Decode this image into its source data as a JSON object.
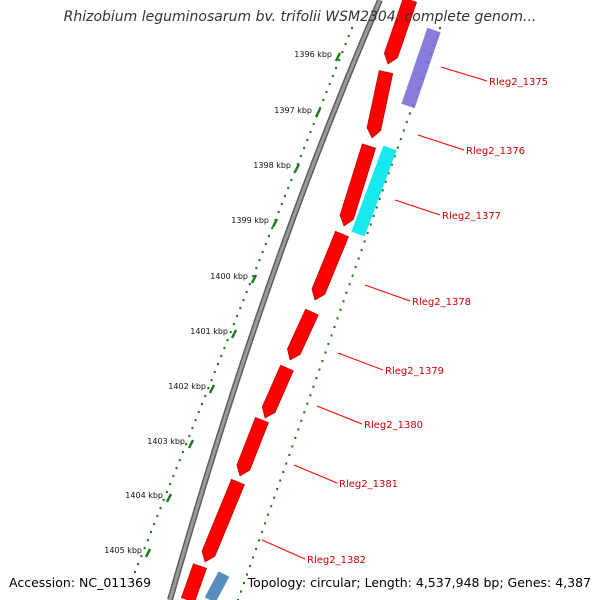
{
  "title": "Rhizobium leguminosarum bv. trifolii WSM2304, complete genom...",
  "footer": {
    "accession": "Accession: NC_011369",
    "summary": "Topology: circular; Length: 4,537,948 bp; Genes: 4,387"
  },
  "colors": {
    "backbone": "#8c8c8c",
    "forward_gene": "#ff0000",
    "gene_label": "#cc0000",
    "tick_mark": "#1f7a1f",
    "highlight_purple": "#7b6fd6",
    "highlight_cyan": "#00e5ee",
    "highlight_steelblue": "#4682b4"
  },
  "ticks": [
    "1396 kbp",
    "1397 kbp",
    "1398 kbp",
    "1399 kbp",
    "1400 kbp",
    "1401 kbp",
    "1402 kbp",
    "1403 kbp",
    "1404 kbp",
    "1405 kbp"
  ],
  "genes": [
    "Rleg2_1375",
    "Rleg2_1376",
    "Rleg2_1377",
    "Rleg2_1378",
    "Rleg2_1379",
    "Rleg2_1380",
    "Rleg2_1381",
    "Rleg2_1382"
  ]
}
